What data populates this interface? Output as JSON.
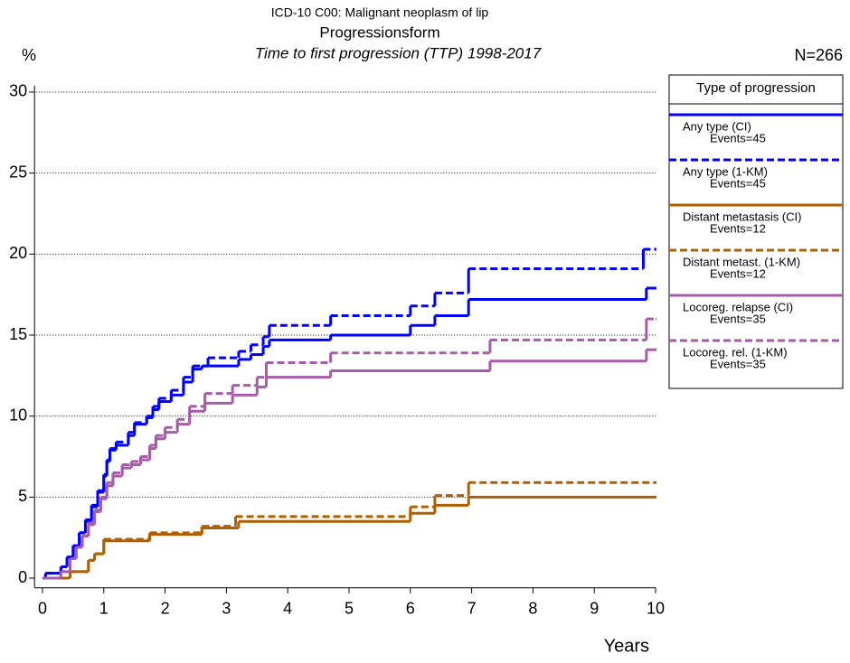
{
  "chart_data": {
    "type": "step",
    "title": "ICD-10 C00: Malignant neoplasm of lip",
    "subtitle": "Progressionsform",
    "subtitle2": "Time to first progression (TTP) 1998-2017",
    "y_label": "%",
    "x_label": "Years",
    "n_label": "N=266",
    "legend_title": "Type of progression",
    "xlim": [
      -0.1,
      10
    ],
    "ylim": [
      -0.6,
      30.4
    ],
    "xticks": [
      0,
      1,
      2,
      3,
      4,
      5,
      6,
      7,
      8,
      9,
      10
    ],
    "yticks": [
      0,
      5,
      10,
      15,
      20,
      25,
      30
    ],
    "grid": true,
    "series": [
      {
        "name": "Any type (CI)",
        "note": "Events=45",
        "color": "#0000ff",
        "dashed": false,
        "x": [
          0,
          0.05,
          0.3,
          0.4,
          0.5,
          0.6,
          0.7,
          0.8,
          0.9,
          1.0,
          1.05,
          1.1,
          1.2,
          1.4,
          1.5,
          1.7,
          1.8,
          1.9,
          2.1,
          2.3,
          2.45,
          2.6,
          3.2,
          3.4,
          3.6,
          3.7,
          4.7,
          6.0,
          6.4,
          6.95,
          9.85,
          10
        ],
        "values": [
          0,
          0.3,
          0.7,
          1.3,
          2.0,
          2.8,
          3.5,
          4.4,
          5.3,
          6.3,
          7.2,
          7.9,
          8.2,
          8.8,
          9.5,
          9.9,
          10.4,
          10.9,
          11.3,
          12.1,
          12.9,
          13.1,
          13.5,
          13.8,
          14.3,
          14.7,
          15.0,
          15.6,
          16.2,
          17.2,
          17.9,
          17.9
        ]
      },
      {
        "name": "Any type (1-KM)",
        "note": "Events=45",
        "color": "#0000ff",
        "dashed": true,
        "x": [
          0,
          0.05,
          0.3,
          0.4,
          0.5,
          0.6,
          0.7,
          0.8,
          0.9,
          1.0,
          1.05,
          1.1,
          1.2,
          1.4,
          1.5,
          1.7,
          1.8,
          1.9,
          2.1,
          2.3,
          2.45,
          2.7,
          3.2,
          3.4,
          3.6,
          3.7,
          4.7,
          6.0,
          6.4,
          6.95,
          9.8,
          10
        ],
        "values": [
          0,
          0.3,
          0.7,
          1.3,
          2.0,
          2.8,
          3.6,
          4.5,
          5.4,
          6.4,
          7.3,
          8.0,
          8.4,
          9.0,
          9.6,
          10.0,
          10.6,
          11.1,
          11.6,
          12.4,
          13.1,
          13.6,
          14.0,
          14.4,
          14.9,
          15.6,
          16.2,
          16.8,
          17.6,
          19.1,
          20.3,
          20.3
        ]
      },
      {
        "name": "Distant metastasis (CI)",
        "note": "Events=12",
        "color": "#b05f00",
        "dashed": false,
        "x": [
          0,
          0.45,
          0.75,
          0.85,
          1.0,
          1.75,
          2.6,
          3.2,
          6.0,
          6.4,
          6.95,
          10
        ],
        "values": [
          0,
          0.4,
          1.1,
          1.5,
          2.3,
          2.7,
          3.1,
          3.5,
          4.0,
          4.5,
          5.0,
          5.0
        ]
      },
      {
        "name": "Distant metast. (1-KM)",
        "note": "Events=12",
        "color": "#b05f00",
        "dashed": true,
        "x": [
          0,
          0.45,
          0.75,
          0.85,
          1.0,
          1.75,
          2.6,
          3.15,
          6.0,
          6.4,
          6.95,
          10
        ],
        "values": [
          0,
          0.4,
          1.1,
          1.5,
          2.4,
          2.8,
          3.2,
          3.8,
          4.4,
          5.1,
          5.9,
          5.9
        ]
      },
      {
        "name": "Locoreg. relapse (CI)",
        "note": "Events=35",
        "color": "#a65ca8",
        "dashed": false,
        "x": [
          0,
          0.3,
          0.45,
          0.55,
          0.65,
          0.75,
          0.85,
          0.95,
          1.05,
          1.15,
          1.3,
          1.45,
          1.6,
          1.75,
          1.85,
          2.0,
          2.2,
          2.4,
          2.65,
          3.1,
          3.5,
          3.65,
          4.7,
          7.3,
          9.85,
          10
        ],
        "values": [
          0,
          0.4,
          1.2,
          1.9,
          2.6,
          3.3,
          4.1,
          4.9,
          5.7,
          6.3,
          6.8,
          7.0,
          7.3,
          8.0,
          8.6,
          9.0,
          9.5,
          10.3,
          10.8,
          11.3,
          11.8,
          12.4,
          12.8,
          13.4,
          14.1,
          14.1
        ]
      },
      {
        "name": "Locoreg. rel. (1-KM)",
        "note": "Events=35",
        "color": "#a65ca8",
        "dashed": true,
        "x": [
          0,
          0.3,
          0.45,
          0.55,
          0.65,
          0.75,
          0.85,
          0.95,
          1.05,
          1.15,
          1.3,
          1.45,
          1.6,
          1.75,
          1.85,
          2.0,
          2.2,
          2.4,
          2.65,
          3.1,
          3.5,
          3.65,
          4.7,
          7.3,
          9.85,
          10
        ],
        "values": [
          0,
          0.4,
          1.2,
          1.9,
          2.6,
          3.4,
          4.2,
          5.0,
          5.9,
          6.5,
          7.0,
          7.2,
          7.5,
          8.2,
          8.8,
          9.3,
          9.8,
          10.6,
          11.4,
          11.9,
          12.4,
          13.3,
          13.9,
          14.7,
          16.0,
          16.0
        ]
      }
    ]
  }
}
